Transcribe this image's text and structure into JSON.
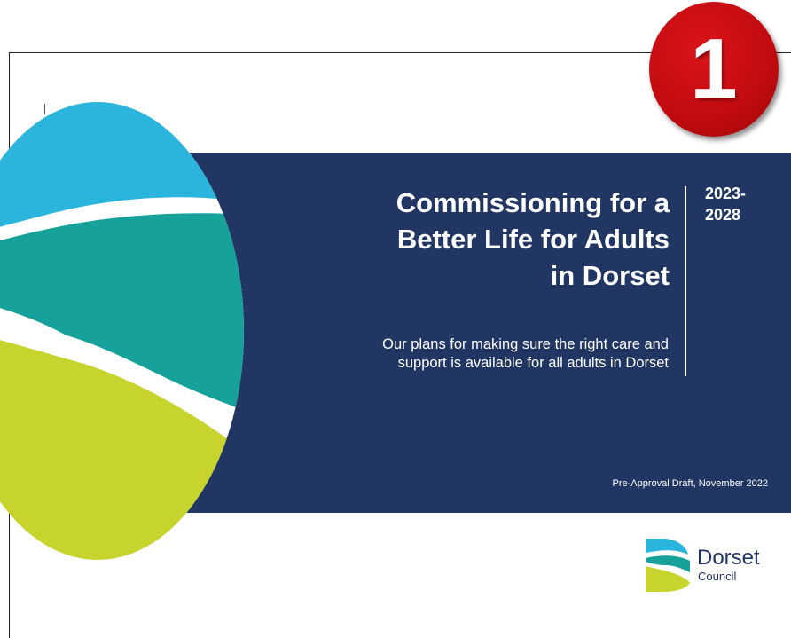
{
  "slide": {
    "title_lines": [
      "Commissioning for a",
      "Better Life for Adults",
      "in Dorset"
    ],
    "years_lines": [
      "2023-",
      "2028"
    ],
    "subtitle_lines": [
      "Our plans for making sure the right care and",
      "support is available for all adults in Dorset"
    ],
    "draft_note": "Pre-Approval Draft, November 2022"
  },
  "badge": {
    "number": "1"
  },
  "logo": {
    "name": "Dorset",
    "sub": "Council"
  },
  "colors": {
    "banner": "#213663",
    "sky_blue": "#2bb4dc",
    "teal": "#16a29a",
    "lime": "#c6d42d",
    "badge_red": "#c10b10"
  }
}
